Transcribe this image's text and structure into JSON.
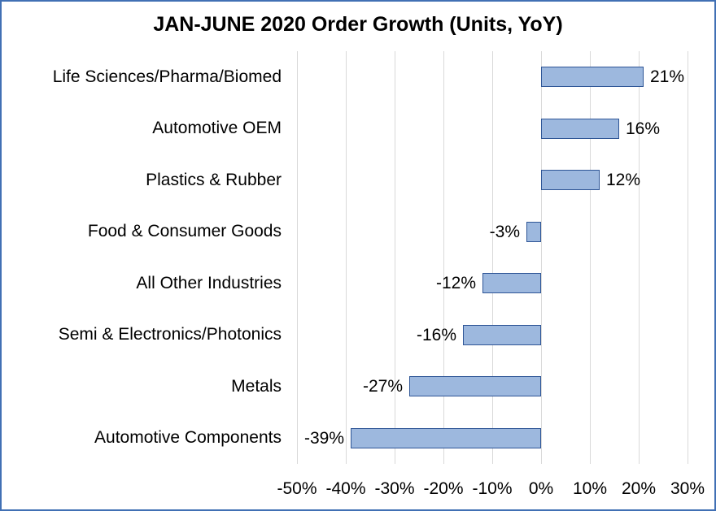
{
  "title": "JAN-JUNE 2020 Order Growth (Units, YoY)",
  "chart_data": {
    "type": "bar",
    "orientation": "horizontal",
    "title": "JAN-JUNE 2020 Order Growth (Units, YoY)",
    "categories": [
      "Life Sciences/Pharma/Biomed",
      "Automotive OEM",
      "Plastics & Rubber",
      "Food & Consumer Goods",
      "All Other Industries",
      "Semi & Electronics/Photonics",
      "Metals",
      "Automotive Components"
    ],
    "values": [
      21,
      16,
      12,
      -3,
      -12,
      -16,
      -27,
      -39
    ],
    "value_labels": [
      "21%",
      "16%",
      "12%",
      "-3%",
      "-12%",
      "-16%",
      "-27%",
      "-39%"
    ],
    "x_ticks": [
      {
        "value": -50,
        "label": "-50%"
      },
      {
        "value": -40,
        "label": "-40%"
      },
      {
        "value": -30,
        "label": "-30%"
      },
      {
        "value": -20,
        "label": "-20%"
      },
      {
        "value": -10,
        "label": "-10%"
      },
      {
        "value": 0,
        "label": "0%"
      },
      {
        "value": 10,
        "label": "10%"
      },
      {
        "value": 20,
        "label": "20%"
      },
      {
        "value": 30,
        "label": "30%"
      }
    ],
    "xlim": [
      -50,
      30
    ],
    "grid": true,
    "legend": "none",
    "colors": {
      "bar_fill": "#9DB8DE",
      "bar_border": "#2E5596",
      "gridline": "#D9D9D9",
      "frame_border": "#4170B4",
      "text": "#000000"
    }
  }
}
